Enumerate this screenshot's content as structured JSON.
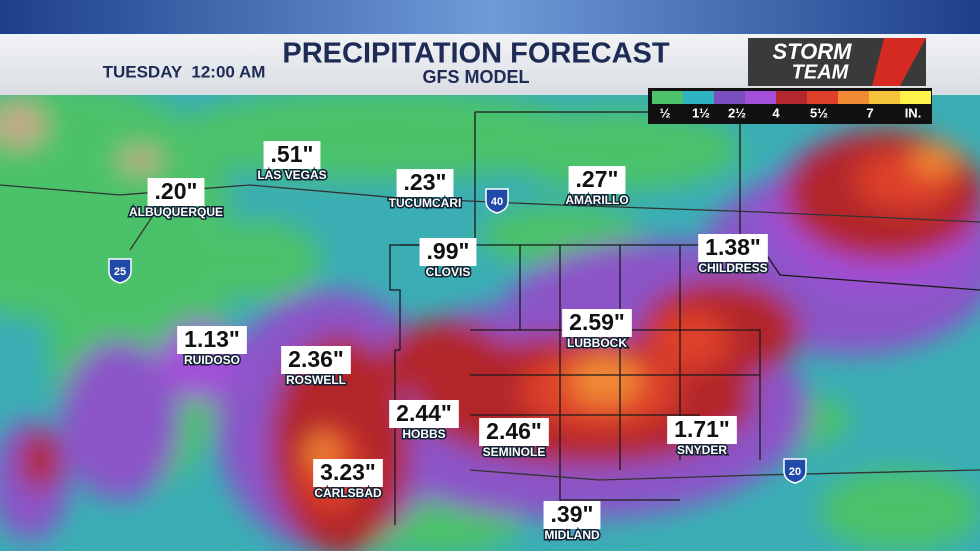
{
  "header": {
    "time": "TUESDAY  12:00 AM",
    "title": "PRECIPITATION FORECAST",
    "subtitle": "GFS MODEL",
    "logo_top": "STORM",
    "logo_bottom": "TEAM"
  },
  "legend": {
    "labels": [
      "½",
      "1½",
      "2½",
      "4",
      "5½",
      "7",
      "IN."
    ]
  },
  "highways": [
    "25",
    "40",
    "20"
  ],
  "cities": [
    {
      "name": "LAS VEGAS",
      "amount": ".51\""
    },
    {
      "name": "ALBUQUERQUE",
      "amount": ".20\""
    },
    {
      "name": "TUCUMCARI",
      "amount": ".23\""
    },
    {
      "name": "AMARILLO",
      "amount": ".27\""
    },
    {
      "name": "CLOVIS",
      "amount": ".99\""
    },
    {
      "name": "CHILDRESS",
      "amount": "1.38\""
    },
    {
      "name": "LUBBOCK",
      "amount": "2.59\""
    },
    {
      "name": "RUIDOSO",
      "amount": "1.13\""
    },
    {
      "name": "ROSWELL",
      "amount": "2.36\""
    },
    {
      "name": "HOBBS",
      "amount": "2.44\""
    },
    {
      "name": "SEMINOLE",
      "amount": "2.46\""
    },
    {
      "name": "SNYDER",
      "amount": "1.71\""
    },
    {
      "name": "CARLSBAD",
      "amount": "3.23\""
    },
    {
      "name": "MIDLAND",
      "amount": ".39\""
    }
  ]
}
